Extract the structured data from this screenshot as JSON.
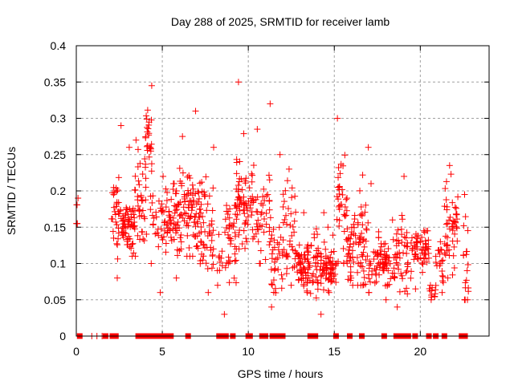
{
  "chart_data": {
    "type": "scatter",
    "title": "Day 288 of 2025, SRMTID for receiver lamb",
    "xlabel": "GPS time / hours",
    "ylabel": "SRMTID / TECUs",
    "xlim": [
      0,
      24
    ],
    "ylim": [
      0,
      0.4
    ],
    "xticks": [
      0,
      5,
      10,
      15,
      20
    ],
    "xtick_labels": [
      "0",
      "5",
      "10",
      "15",
      "20"
    ],
    "yticks": [
      0,
      0.05,
      0.1,
      0.15,
      0.2,
      0.25,
      0.3,
      0.35,
      0.4
    ],
    "ytick_labels": [
      "0",
      "0.05",
      "0.1",
      "0.15",
      "0.2",
      "0.25",
      "0.3",
      "0.35",
      "0.4"
    ],
    "grid": true,
    "legend": "none",
    "marker": "plus",
    "series_color": "#ff0000",
    "series": [
      {
        "name": "SRMTID",
        "description": "per-satellite-pass clusters of SRMTID values (hour, typical value, spread, max)",
        "clusters": [
          {
            "t0": 0.0,
            "t1": 0.1,
            "center": 0.17,
            "spread": 0.015,
            "min": 0.155,
            "max": 0.19,
            "n": 6
          },
          {
            "t0": 2.0,
            "t1": 2.6,
            "center": 0.165,
            "spread": 0.035,
            "min": 0.08,
            "max": 0.29,
            "n": 35
          },
          {
            "t0": 2.6,
            "t1": 3.4,
            "center": 0.15,
            "spread": 0.02,
            "min": 0.11,
            "max": 0.26,
            "n": 60
          },
          {
            "t0": 3.4,
            "t1": 4.0,
            "center": 0.18,
            "spread": 0.04,
            "min": 0.11,
            "max": 0.27,
            "n": 35
          },
          {
            "t0": 4.0,
            "t1": 4.4,
            "center": 0.24,
            "spread": 0.05,
            "min": 0.1,
            "max": 0.345,
            "n": 35
          },
          {
            "t0": 4.4,
            "t1": 5.2,
            "center": 0.16,
            "spread": 0.03,
            "min": 0.06,
            "max": 0.22,
            "n": 30
          },
          {
            "t0": 5.2,
            "t1": 6.0,
            "center": 0.16,
            "spread": 0.03,
            "min": 0.08,
            "max": 0.21,
            "n": 55
          },
          {
            "t0": 6.0,
            "t1": 6.4,
            "center": 0.18,
            "spread": 0.04,
            "min": 0.12,
            "max": 0.275,
            "n": 25
          },
          {
            "t0": 6.4,
            "t1": 7.2,
            "center": 0.17,
            "spread": 0.03,
            "min": 0.11,
            "max": 0.31,
            "n": 60
          },
          {
            "t0": 7.2,
            "t1": 8.0,
            "center": 0.15,
            "spread": 0.04,
            "min": 0.06,
            "max": 0.26,
            "n": 50
          },
          {
            "t0": 8.2,
            "t1": 8.6,
            "center": 0.1,
            "spread": 0.02,
            "min": 0.07,
            "max": 0.14,
            "n": 10
          },
          {
            "t0": 8.6,
            "t1": 9.3,
            "center": 0.13,
            "spread": 0.04,
            "min": 0.03,
            "max": 0.18,
            "n": 40
          },
          {
            "t0": 9.3,
            "t1": 9.9,
            "center": 0.19,
            "spread": 0.04,
            "min": 0.12,
            "max": 0.35,
            "n": 50
          },
          {
            "t0": 9.9,
            "t1": 10.6,
            "center": 0.17,
            "spread": 0.04,
            "min": 0.13,
            "max": 0.285,
            "n": 35
          },
          {
            "t0": 10.6,
            "t1": 11.3,
            "center": 0.17,
            "spread": 0.04,
            "min": 0.1,
            "max": 0.32,
            "n": 30
          },
          {
            "t0": 11.3,
            "t1": 12.0,
            "center": 0.11,
            "spread": 0.03,
            "min": 0.04,
            "max": 0.25,
            "n": 35
          },
          {
            "t0": 12.0,
            "t1": 12.8,
            "center": 0.15,
            "spread": 0.04,
            "min": 0.07,
            "max": 0.23,
            "n": 40
          },
          {
            "t0": 12.8,
            "t1": 13.6,
            "center": 0.1,
            "spread": 0.02,
            "min": 0.06,
            "max": 0.17,
            "n": 60
          },
          {
            "t0": 13.6,
            "t1": 14.4,
            "center": 0.1,
            "spread": 0.025,
            "min": 0.03,
            "max": 0.17,
            "n": 45
          },
          {
            "t0": 14.4,
            "t1": 15.1,
            "center": 0.09,
            "spread": 0.02,
            "min": 0.06,
            "max": 0.15,
            "n": 50
          },
          {
            "t0": 15.1,
            "t1": 15.7,
            "center": 0.17,
            "spread": 0.05,
            "min": 0.1,
            "max": 0.3,
            "n": 35
          },
          {
            "t0": 15.7,
            "t1": 16.3,
            "center": 0.12,
            "spread": 0.03,
            "min": 0.07,
            "max": 0.19,
            "n": 40
          },
          {
            "t0": 16.3,
            "t1": 17.0,
            "center": 0.12,
            "spread": 0.045,
            "min": 0.07,
            "max": 0.26,
            "n": 45
          },
          {
            "t0": 17.0,
            "t1": 17.8,
            "center": 0.1,
            "spread": 0.025,
            "min": 0.06,
            "max": 0.21,
            "n": 40
          },
          {
            "t0": 17.8,
            "t1": 18.6,
            "center": 0.1,
            "spread": 0.02,
            "min": 0.05,
            "max": 0.16,
            "n": 45
          },
          {
            "t0": 18.6,
            "t1": 19.5,
            "center": 0.11,
            "spread": 0.03,
            "min": 0.04,
            "max": 0.22,
            "n": 45
          },
          {
            "t0": 19.5,
            "t1": 20.5,
            "center": 0.12,
            "spread": 0.02,
            "min": 0.065,
            "max": 0.145,
            "n": 55
          },
          {
            "t0": 20.5,
            "t1": 20.9,
            "center": 0.06,
            "spread": 0.005,
            "min": 0.05,
            "max": 0.07,
            "n": 12
          },
          {
            "t0": 20.9,
            "t1": 21.4,
            "center": 0.1,
            "spread": 0.02,
            "min": 0.06,
            "max": 0.13,
            "n": 20
          },
          {
            "t0": 21.4,
            "t1": 22.2,
            "center": 0.15,
            "spread": 0.04,
            "min": 0.08,
            "max": 0.235,
            "n": 50
          },
          {
            "t0": 22.5,
            "t1": 22.8,
            "center": 0.1,
            "spread": 0.04,
            "min": 0.05,
            "max": 0.195,
            "n": 20
          }
        ]
      }
    ],
    "baseline_markers": {
      "description": "red square markers along y=0",
      "hours": [
        0.2,
        0.9,
        1.2,
        1.5,
        1.7,
        2.1,
        2.3,
        3.6,
        3.9,
        4.0,
        4.2,
        4.5,
        4.7,
        4.9,
        5.1,
        5.3,
        5.5,
        6.5,
        8.3,
        8.6,
        8.7,
        9.1,
        10.0,
        10.1,
        10.8,
        11.0,
        11.4,
        11.7,
        12.0,
        13.6,
        13.9,
        15.1,
        15.9,
        16.6,
        17.9,
        18.6,
        18.9,
        19.2,
        19.3,
        19.7,
        20.5,
        20.9,
        21.4,
        22.4,
        22.6
      ],
      "thin_hours": [
        0.9,
        1.2,
        1.5
      ]
    }
  }
}
